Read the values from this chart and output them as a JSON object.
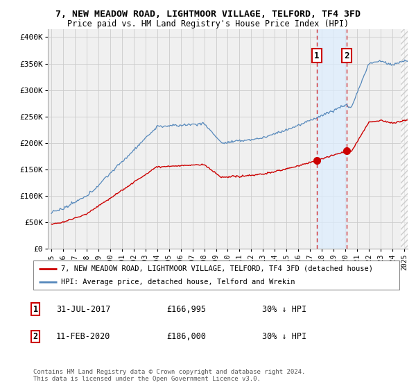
{
  "title1": "7, NEW MEADOW ROAD, LIGHTMOOR VILLAGE, TELFORD, TF4 3FD",
  "title2": "Price paid vs. HM Land Registry's House Price Index (HPI)",
  "ylabel_ticks": [
    "£0",
    "£50K",
    "£100K",
    "£150K",
    "£200K",
    "£250K",
    "£300K",
    "£350K",
    "£400K"
  ],
  "ytick_values": [
    0,
    50000,
    100000,
    150000,
    200000,
    250000,
    300000,
    350000,
    400000
  ],
  "ylim": [
    0,
    415000
  ],
  "xlim_start": 1994.7,
  "xlim_end": 2025.3,
  "xtick_years": [
    1995,
    1996,
    1997,
    1998,
    1999,
    2000,
    2001,
    2002,
    2003,
    2004,
    2005,
    2006,
    2007,
    2008,
    2009,
    2010,
    2011,
    2012,
    2013,
    2014,
    2015,
    2016,
    2017,
    2018,
    2019,
    2020,
    2021,
    2022,
    2023,
    2024,
    2025
  ],
  "purchase1_date": 2017.58,
  "purchase1_price": 166995,
  "purchase1_label": "1",
  "purchase1_info": "31-JUL-2017",
  "purchase1_amount": "£166,995",
  "purchase1_hpi": "30% ↓ HPI",
  "purchase2_date": 2020.12,
  "purchase2_price": 186000,
  "purchase2_label": "2",
  "purchase2_info": "11-FEB-2020",
  "purchase2_amount": "£186,000",
  "purchase2_hpi": "30% ↓ HPI",
  "legend_line1": "7, NEW MEADOW ROAD, LIGHTMOOR VILLAGE, TELFORD, TF4 3FD (detached house)",
  "legend_line2": "HPI: Average price, detached house, Telford and Wrekin",
  "footnote": "Contains HM Land Registry data © Crown copyright and database right 2024.\nThis data is licensed under the Open Government Licence v3.0.",
  "red_color": "#cc0000",
  "blue_color": "#5588bb",
  "background_color": "#f0f0f0",
  "grid_color": "#cccccc",
  "highlight_color": "#ddeeff",
  "hatch_color": "#cccccc"
}
